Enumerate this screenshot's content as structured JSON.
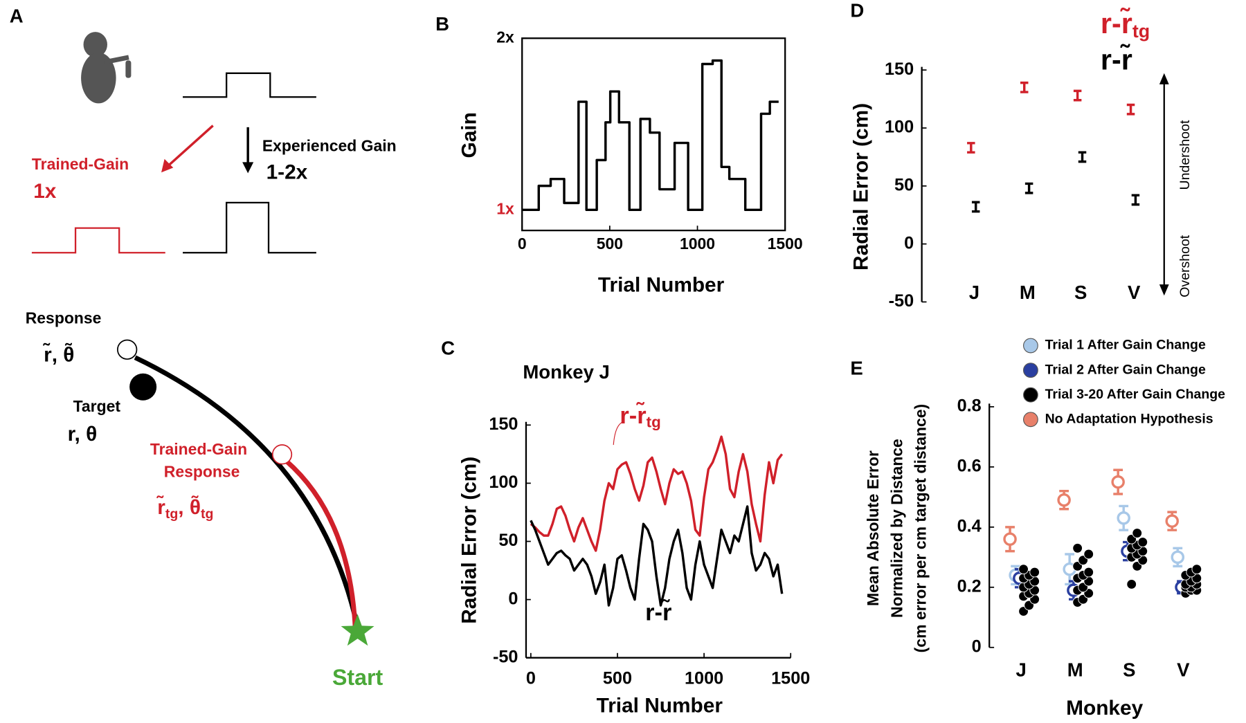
{
  "diagram": {
    "panel": "A",
    "experienced_gain": "Experienced Gain",
    "experienced_range": "1-2x",
    "trained_gain": "Trained-Gain",
    "trained_range": "1x",
    "response": "Response",
    "response_symbols": "r̃, θ̃",
    "target": "Target",
    "target_symbols": "r, θ",
    "trained_response": [
      "Trained-Gain",
      "Response"
    ],
    "trained_symbols": [
      "r̃",
      "tg",
      ", θ̃",
      "tg"
    ],
    "start": "Start"
  },
  "chart_data": [
    {
      "panel": "B",
      "type": "line",
      "step": true,
      "xlabel": "Trial Number",
      "ylabel": "Gain",
      "xlim": [
        0,
        1500
      ],
      "xticks": [
        0,
        500,
        1000,
        1500
      ],
      "ylim": [
        0.88,
        2
      ],
      "yticks": [
        {
          "value": 1,
          "label": "1x",
          "color": "#d0202a"
        },
        {
          "value": 2,
          "label": "2x",
          "color": "#000000"
        }
      ],
      "x": [
        0,
        95,
        163,
        240,
        322,
        367,
        426,
        476,
        503,
        553,
        612,
        675,
        729,
        784,
        870,
        947,
        1028,
        1087,
        1137,
        1182,
        1273,
        1363,
        1413,
        1463
      ],
      "series": [
        {
          "color": "#000000",
          "values": [
            1.0,
            1.14,
            1.18,
            1.04,
            1.63,
            1.0,
            1.29,
            1.51,
            1.69,
            1.51,
            1.0,
            1.53,
            1.45,
            1.12,
            1.39,
            1.0,
            1.85,
            1.87,
            1.25,
            1.18,
            1.0,
            1.56,
            1.63,
            1.63
          ]
        }
      ]
    },
    {
      "panel": "C",
      "type": "line",
      "title": "Monkey J",
      "xlabel": "Trial Number",
      "ylabel": "Radial Error (cm)",
      "xlim": [
        0,
        1500
      ],
      "xticks": [
        0,
        500,
        1000,
        1500
      ],
      "ylim": [
        -50,
        150
      ],
      "yticks": [
        -50,
        0,
        50,
        100,
        150
      ],
      "x": [
        0,
        25,
        50,
        75,
        100,
        125,
        150,
        175,
        200,
        225,
        250,
        275,
        300,
        325,
        350,
        375,
        400,
        425,
        450,
        475,
        500,
        525,
        550,
        575,
        600,
        625,
        650,
        675,
        700,
        725,
        750,
        775,
        800,
        825,
        850,
        875,
        900,
        925,
        950,
        975,
        1000,
        1025,
        1050,
        1075,
        1100,
        1125,
        1150,
        1175,
        1200,
        1225,
        1250,
        1275,
        1300,
        1325,
        1350,
        1375,
        1400,
        1425,
        1450
      ],
      "series": [
        {
          "name": "r-r̃",
          "subscript": "tg",
          "color": "#d0202a",
          "values": [
            65,
            62,
            58,
            55,
            55,
            65,
            78,
            80,
            72,
            60,
            50,
            62,
            70,
            60,
            50,
            42,
            60,
            85,
            100,
            95,
            112,
            116,
            118,
            108,
            95,
            85,
            98,
            118,
            122,
            110,
            95,
            82,
            100,
            112,
            108,
            110,
            100,
            85,
            60,
            55,
            88,
            112,
            118,
            128,
            140,
            125,
            95,
            88,
            110,
            125,
            110,
            82,
            65,
            50,
            90,
            118,
            100,
            120,
            125
          ]
        },
        {
          "name": "r-r̃",
          "color": "#000000",
          "values": [
            68,
            60,
            50,
            40,
            30,
            35,
            40,
            42,
            38,
            35,
            25,
            30,
            35,
            30,
            20,
            5,
            15,
            30,
            -5,
            10,
            35,
            38,
            25,
            10,
            0,
            35,
            65,
            60,
            50,
            20,
            -5,
            10,
            35,
            50,
            60,
            40,
            10,
            0,
            30,
            50,
            30,
            20,
            10,
            35,
            60,
            50,
            40,
            55,
            50,
            65,
            80,
            40,
            25,
            30,
            40,
            35,
            20,
            30,
            5
          ]
        }
      ]
    },
    {
      "panel": "D",
      "type": "errorbar",
      "ylabel": "Radial Error (cm)",
      "categories": [
        "J",
        "M",
        "S",
        "V"
      ],
      "ylim": [
        -50,
        150
      ],
      "yticks": [
        -50,
        0,
        50,
        100,
        150
      ],
      "side_labels": [
        "Undershoot",
        "Overshoot"
      ],
      "series": [
        {
          "name": "r-r̃",
          "subscript": "tg",
          "color": "#d0202a",
          "values": [
            83,
            135,
            128,
            116
          ],
          "errors": [
            4,
            4,
            4,
            4
          ]
        },
        {
          "name": "r-r̃",
          "color": "#000000",
          "values": [
            32,
            48,
            75,
            38
          ],
          "errors": [
            4,
            4,
            4,
            4
          ]
        }
      ]
    },
    {
      "panel": "E",
      "type": "errorbar",
      "xlabel": "Monkey",
      "ylabel": [
        "Mean Absolute Error",
        "Normalized by Distance",
        "(cm error per cm target distance)"
      ],
      "categories": [
        "J",
        "M",
        "S",
        "V"
      ],
      "ylim": [
        0,
        0.8
      ],
      "yticks": [
        0,
        0.2,
        0.4,
        0.6,
        0.8
      ],
      "series": [
        {
          "name": "Trial 1 After Gain Change",
          "color": "#a8c8e8",
          "marker": "open-circle",
          "values": [
            0.24,
            0.26,
            0.43,
            0.3
          ],
          "errors": [
            0.03,
            0.05,
            0.04,
            0.03
          ]
        },
        {
          "name": "Trial 2 After Gain Change",
          "color": "#2a3fa0",
          "marker": "open-circle",
          "values": [
            0.23,
            0.19,
            0.32,
            0.2
          ],
          "errors": [
            0.03,
            0.03,
            0.03,
            0.02
          ]
        },
        {
          "name": "Trial 3-20 After Gain Change",
          "color": "#000000",
          "values": [
            [
              0.12,
              0.14,
              0.16,
              0.17,
              0.18,
              0.19,
              0.2,
              0.21,
              0.22,
              0.23,
              0.24,
              0.25,
              0.26
            ],
            [
              0.15,
              0.16,
              0.18,
              0.19,
              0.2,
              0.22,
              0.23,
              0.24,
              0.25,
              0.27,
              0.29,
              0.31,
              0.33
            ],
            [
              0.21,
              0.27,
              0.29,
              0.3,
              0.31,
              0.32,
              0.33,
              0.34,
              0.35,
              0.36,
              0.38
            ],
            [
              0.18,
              0.19,
              0.19,
              0.2,
              0.2,
              0.21,
              0.21,
              0.22,
              0.23,
              0.24,
              0.25,
              0.26
            ]
          ]
        },
        {
          "name": "No Adaptation Hypothesis",
          "color": "#e8806a",
          "marker": "open-circle",
          "values": [
            0.36,
            0.49,
            0.55,
            0.42
          ],
          "errors": [
            0.04,
            0.03,
            0.04,
            0.03
          ]
        }
      ]
    }
  ]
}
